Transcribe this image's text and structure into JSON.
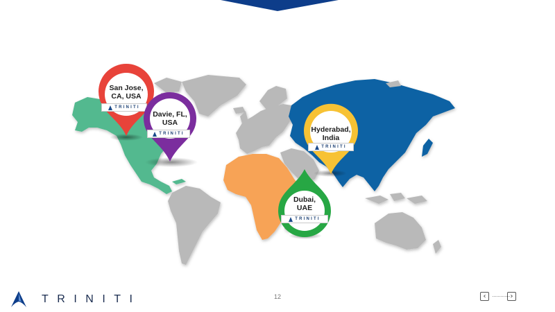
{
  "brand": {
    "name": "TRINITI",
    "colors": {
      "navy": "#0d3d8a",
      "map_gray": "#b9b9b9",
      "asia_blue": "#0b62a4",
      "africa_orange": "#f7a356",
      "north_america_green": "#52b98f"
    }
  },
  "map": {
    "icon": "world-map",
    "regions": [
      {
        "name": "north-america",
        "color": "#52b98f"
      },
      {
        "name": "asia",
        "color": "#0b62a4"
      },
      {
        "name": "africa",
        "color": "#f7a356"
      },
      {
        "name": "other",
        "color": "#b9b9b9"
      }
    ]
  },
  "locations": [
    {
      "id": "san-jose",
      "line1": "San Jose,",
      "line2": "CA, USA",
      "color": "#e8433a",
      "badge": "TRINITI"
    },
    {
      "id": "davie",
      "line1": "Davie, FL,",
      "line2": "USA",
      "color": "#7b2d9e",
      "badge": "TRINITI"
    },
    {
      "id": "hyderabad",
      "line1": "Hyderabad,",
      "line2": "India",
      "color": "#f7c234",
      "badge": "TRINITI"
    },
    {
      "id": "dubai",
      "line1": "Dubai,",
      "line2": "UAE",
      "color": "#27a744",
      "badge": "TRINITI"
    }
  ],
  "footer": {
    "logo_text": "TRINITI",
    "page_number": "12",
    "prev_icon": "chevron-left-icon",
    "next_icon": "chevron-right-icon",
    "prev_glyph": "‹",
    "next_glyph": "›"
  }
}
